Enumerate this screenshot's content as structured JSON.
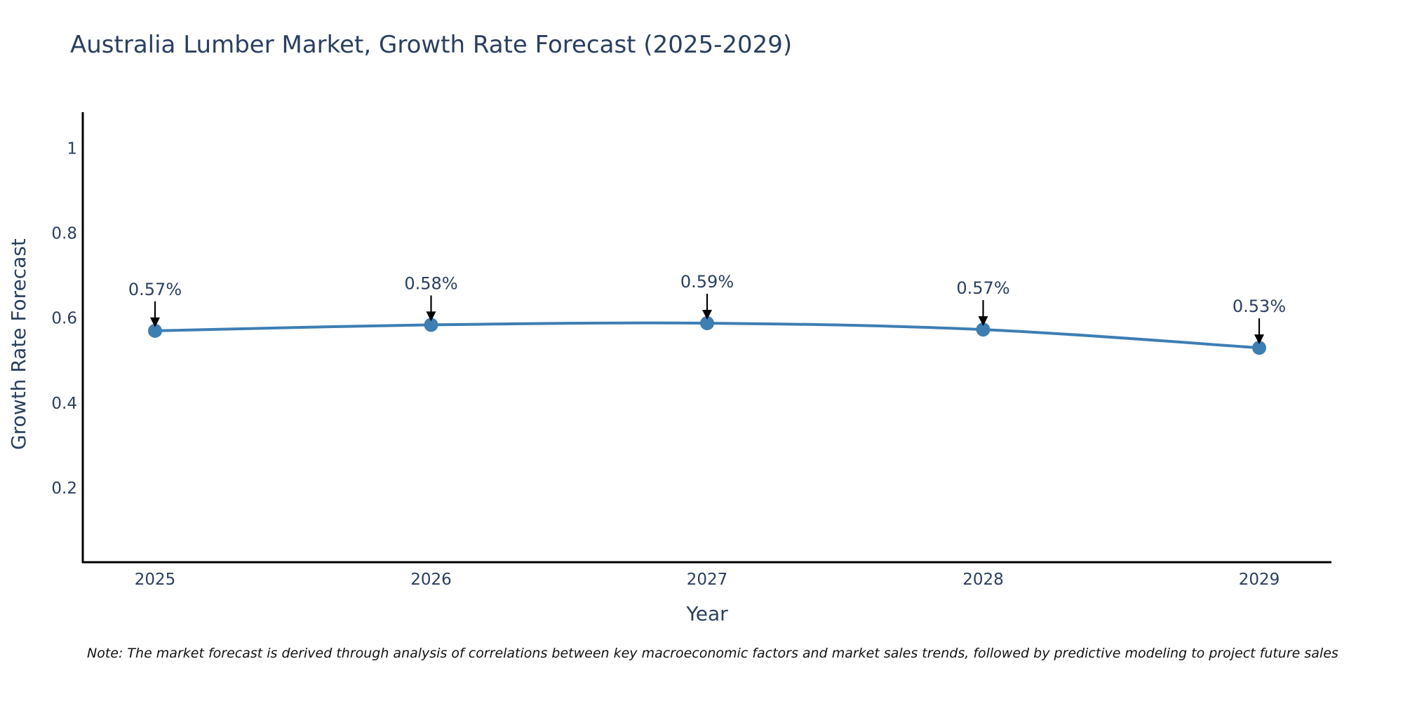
{
  "chart_data": {
    "type": "line",
    "title": "Australia Lumber Market, Growth Rate Forecast (2025-2029)",
    "xlabel": "Year",
    "ylabel": "Growth Rate Forecast",
    "x": [
      "2025",
      "2026",
      "2027",
      "2028",
      "2029"
    ],
    "series": [
      {
        "name": "Growth Rate Forecast",
        "values": [
          0.57,
          0.584,
          0.588,
          0.573,
          0.53
        ],
        "labels": [
          "0.57%",
          "0.58%",
          "0.59%",
          "0.57%",
          "0.53%"
        ]
      }
    ],
    "yticks": [
      "0.2",
      "0.4",
      "0.6",
      "0.8",
      "1"
    ],
    "ytick_values": [
      0.2,
      0.4,
      0.6,
      0.8,
      1.0
    ],
    "ylim": [
      0.025,
      1.085
    ],
    "grid": false,
    "line_color": "#3d7eb3",
    "marker_color": "#3d7eb3",
    "arrow_color": "#000000",
    "note": "Note: The market forecast is derived through analysis of correlations between key macroeconomic factors and market sales trends, followed by predictive modeling to project future sales"
  }
}
